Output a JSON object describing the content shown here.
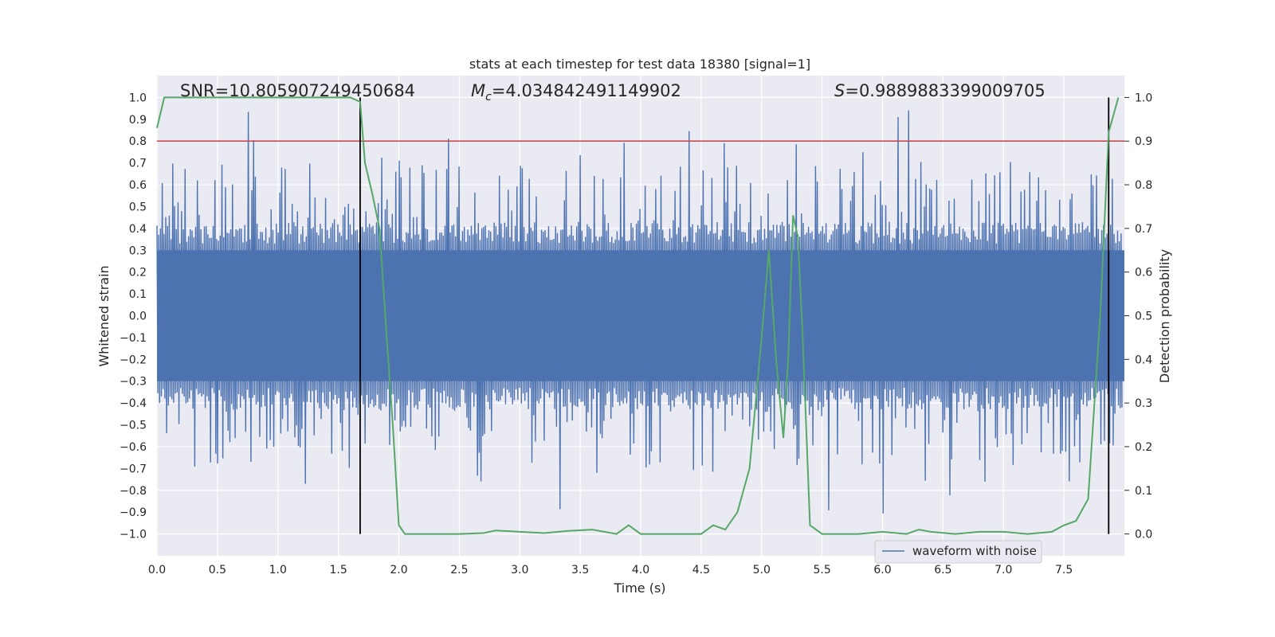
{
  "chart_data": {
    "type": "line",
    "title": "stats at each timestep for test data 18380 [signal=1]",
    "xlabel": "Time (s)",
    "ylabel_left": "Whitened strain",
    "ylabel_right": "Detection probability",
    "xlim": [
      0.0,
      8.0
    ],
    "ylim_left": [
      -1.1,
      1.1
    ],
    "ylim_right": [
      -0.05,
      1.05
    ],
    "x_ticks": [
      "0.0",
      "0.5",
      "1.0",
      "1.5",
      "2.0",
      "2.5",
      "3.0",
      "3.5",
      "4.0",
      "4.5",
      "5.0",
      "5.5",
      "6.0",
      "6.5",
      "7.0",
      "7.5"
    ],
    "y_left_ticks": [
      "1.0",
      "0.9",
      "0.8",
      "0.7",
      "0.6",
      "0.5",
      "0.4",
      "0.3",
      "0.2",
      "0.1",
      "0.0",
      "−0.1",
      "−0.2",
      "−0.3",
      "−0.4",
      "−0.5",
      "−0.6",
      "−0.7",
      "−0.8",
      "−0.9",
      "−1.0"
    ],
    "y_right_ticks": [
      "1.0",
      "0.9",
      "0.8",
      "0.7",
      "0.6",
      "0.5",
      "0.4",
      "0.3",
      "0.2",
      "0.1",
      "0.0"
    ],
    "grid": true,
    "legend": {
      "position": "bottom-right",
      "entries": [
        "waveform with noise"
      ]
    },
    "annotations": {
      "snr": "SNR=10.805907249450684",
      "mc_symbol": "M",
      "mc_sub": "c",
      "mc_value": "=4.034842491149902",
      "s_symbol": "S",
      "s_value": "=0.9889883399009705"
    },
    "threshold": {
      "value": 0.9,
      "axis": "right",
      "color": "#c44e52"
    },
    "vlines": [
      1.68,
      7.87
    ],
    "waveform": {
      "name": "waveform with noise",
      "color": "#4c72b0",
      "samples": 1100,
      "max_abs": 1.0
    },
    "probability": {
      "color": "#55a868",
      "x": [
        0.0,
        0.06,
        0.2,
        0.4,
        0.6,
        0.8,
        1.0,
        1.2,
        1.4,
        1.6,
        1.68,
        1.72,
        1.78,
        1.84,
        1.9,
        1.95,
        2.0,
        2.05,
        2.2,
        2.5,
        2.7,
        2.8,
        3.0,
        3.2,
        3.4,
        3.6,
        3.7,
        3.8,
        3.9,
        4.0,
        4.1,
        4.3,
        4.5,
        4.6,
        4.7,
        4.8,
        4.9,
        5.0,
        5.06,
        5.12,
        5.18,
        5.22,
        5.26,
        5.3,
        5.34,
        5.4,
        5.5,
        5.8,
        6.0,
        6.2,
        6.3,
        6.4,
        6.6,
        6.8,
        7.0,
        7.2,
        7.4,
        7.5,
        7.6,
        7.7,
        7.8,
        7.87,
        7.95
      ],
      "y": [
        0.93,
        1.0,
        1.0,
        1.0,
        1.0,
        1.0,
        1.0,
        1.0,
        1.0,
        1.0,
        0.99,
        0.85,
        0.78,
        0.7,
        0.45,
        0.25,
        0.02,
        0.0,
        0.0,
        0.0,
        0.002,
        0.008,
        0.005,
        0.002,
        0.007,
        0.01,
        0.005,
        0.0,
        0.02,
        0.0,
        0.0,
        0.0,
        0.0,
        0.02,
        0.01,
        0.05,
        0.15,
        0.45,
        0.65,
        0.4,
        0.22,
        0.4,
        0.73,
        0.68,
        0.45,
        0.02,
        0.0,
        0.0,
        0.005,
        0.0,
        0.01,
        0.005,
        0.0,
        0.005,
        0.005,
        0.0,
        0.005,
        0.02,
        0.03,
        0.08,
        0.5,
        0.92,
        1.0
      ]
    }
  }
}
